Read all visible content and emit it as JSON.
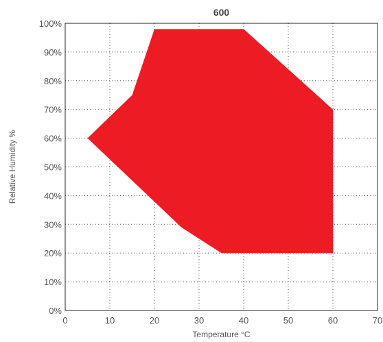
{
  "chart_data": {
    "type": "area",
    "title": "600",
    "xlabel": "Temperature °C",
    "ylabel": "Relative Humidity %",
    "xlim": [
      0,
      70
    ],
    "ylim": [
      0,
      100
    ],
    "x_ticks": [
      0,
      10,
      20,
      30,
      40,
      50,
      60,
      70
    ],
    "x_tick_labels": [
      "0",
      "10",
      "20",
      "30",
      "40",
      "50",
      "60",
      "70"
    ],
    "y_ticks": [
      0,
      10,
      20,
      30,
      40,
      50,
      60,
      70,
      80,
      90,
      100
    ],
    "y_tick_labels": [
      "0%",
      "10%",
      "20%",
      "30%",
      "40%",
      "50%",
      "60%",
      "70%",
      "80%",
      "90%",
      "100%"
    ],
    "grid": true,
    "grid_style": "dotted",
    "series": [
      {
        "color": "#ed1c24",
        "points": [
          {
            "x": 5,
            "y": 60
          },
          {
            "x": 15,
            "y": 75
          },
          {
            "x": 20,
            "y": 98
          },
          {
            "x": 40,
            "y": 98
          },
          {
            "x": 60,
            "y": 70
          },
          {
            "x": 60,
            "y": 20
          },
          {
            "x": 35,
            "y": 20
          },
          {
            "x": 26,
            "y": 29
          }
        ]
      }
    ]
  }
}
